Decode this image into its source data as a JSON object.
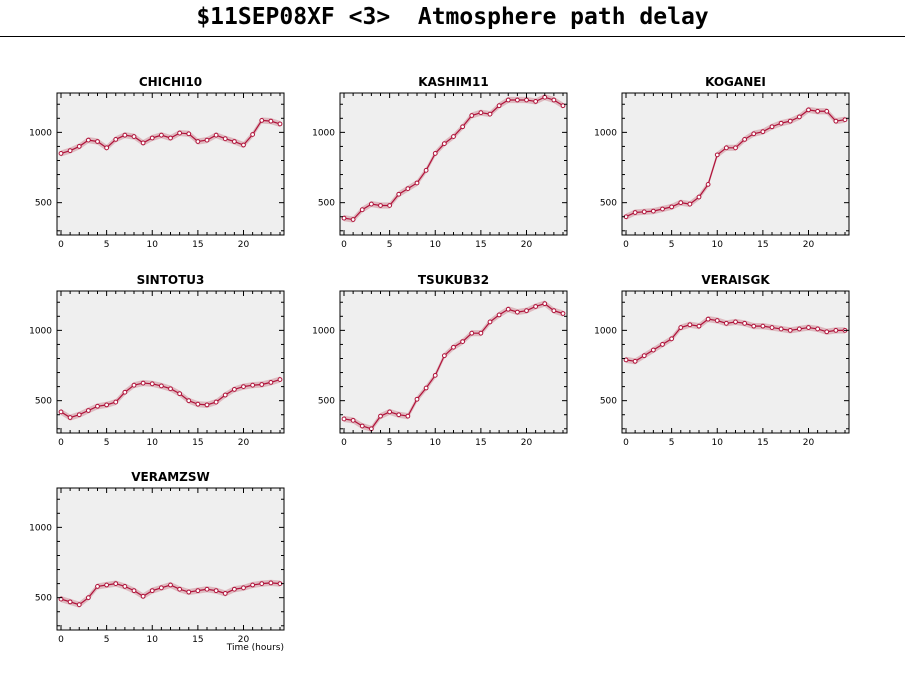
{
  "page": {
    "title": "$11SEP08XF <3>  Atmosphere path delay"
  },
  "chart_data": {
    "type": "line",
    "xlabel": "Time (hours)",
    "xlim": [
      0,
      24
    ],
    "ylim": [
      270,
      1280
    ],
    "xticks": [
      0,
      5,
      10,
      15,
      20
    ],
    "yticks": [
      500,
      1000
    ],
    "colors": {
      "line": "#b0123a",
      "band": "#d8a8b0",
      "panel": "#efefef",
      "marker_fill": "#ffffff"
    },
    "panels": [
      {
        "name": "CHICHI10",
        "x": [
          0,
          1,
          2,
          3,
          4,
          5,
          6,
          7,
          8,
          9,
          10,
          11,
          12,
          13,
          14,
          15,
          16,
          17,
          18,
          19,
          20,
          21,
          22,
          23,
          24
        ],
        "y": [
          850,
          870,
          900,
          945,
          935,
          890,
          950,
          980,
          970,
          925,
          960,
          980,
          960,
          995,
          990,
          935,
          945,
          980,
          955,
          935,
          910,
          985,
          1085,
          1080,
          1060
        ]
      },
      {
        "name": "KASHIM11",
        "x": [
          0,
          1,
          2,
          3,
          4,
          5,
          6,
          7,
          8,
          9,
          10,
          11,
          12,
          13,
          14,
          15,
          16,
          17,
          18,
          19,
          20,
          21,
          22,
          23,
          24
        ],
        "y": [
          390,
          380,
          450,
          490,
          480,
          480,
          560,
          600,
          640,
          730,
          850,
          920,
          970,
          1040,
          1120,
          1140,
          1130,
          1190,
          1230,
          1230,
          1230,
          1220,
          1250,
          1230,
          1190
        ]
      },
      {
        "name": "KOGANEI",
        "x": [
          0,
          1,
          2,
          3,
          4,
          5,
          6,
          7,
          8,
          9,
          10,
          11,
          12,
          13,
          14,
          15,
          16,
          17,
          18,
          19,
          20,
          21,
          22,
          23,
          24
        ],
        "y": [
          400,
          430,
          435,
          440,
          455,
          470,
          500,
          490,
          540,
          630,
          840,
          890,
          890,
          950,
          990,
          1005,
          1040,
          1065,
          1080,
          1110,
          1160,
          1150,
          1150,
          1080,
          1090
        ]
      },
      {
        "name": "SINTOTU3",
        "x": [
          0,
          1,
          2,
          3,
          4,
          5,
          6,
          7,
          8,
          9,
          10,
          11,
          12,
          13,
          14,
          15,
          16,
          17,
          18,
          19,
          20,
          21,
          22,
          23,
          24
        ],
        "y": [
          420,
          380,
          400,
          430,
          460,
          470,
          490,
          560,
          610,
          625,
          620,
          605,
          585,
          550,
          500,
          475,
          470,
          490,
          540,
          580,
          600,
          610,
          615,
          630,
          650
        ]
      },
      {
        "name": "TSUKUB32",
        "x": [
          0,
          1,
          2,
          3,
          4,
          5,
          6,
          7,
          8,
          9,
          10,
          11,
          12,
          13,
          14,
          15,
          16,
          17,
          18,
          19,
          20,
          21,
          22,
          23,
          24
        ],
        "y": [
          370,
          360,
          320,
          300,
          390,
          420,
          400,
          390,
          510,
          590,
          680,
          820,
          880,
          920,
          980,
          980,
          1060,
          1110,
          1150,
          1130,
          1140,
          1170,
          1190,
          1140,
          1120
        ]
      },
      {
        "name": "VERAISGK",
        "x": [
          0,
          1,
          2,
          3,
          4,
          5,
          6,
          7,
          8,
          9,
          10,
          11,
          12,
          13,
          14,
          15,
          16,
          17,
          18,
          19,
          20,
          21,
          22,
          23,
          24
        ],
        "y": [
          790,
          780,
          820,
          860,
          900,
          940,
          1020,
          1040,
          1030,
          1080,
          1070,
          1050,
          1060,
          1050,
          1030,
          1030,
          1020,
          1010,
          1000,
          1010,
          1020,
          1010,
          990,
          1000,
          1000
        ]
      },
      {
        "name": "VERAMZSW",
        "x": [
          0,
          1,
          2,
          3,
          4,
          5,
          6,
          7,
          8,
          9,
          10,
          11,
          12,
          13,
          14,
          15,
          16,
          17,
          18,
          19,
          20,
          21,
          22,
          23,
          24
        ],
        "y": [
          490,
          470,
          450,
          500,
          580,
          590,
          600,
          580,
          550,
          510,
          550,
          570,
          590,
          560,
          540,
          550,
          560,
          550,
          530,
          560,
          570,
          590,
          600,
          605,
          600
        ]
      }
    ]
  }
}
